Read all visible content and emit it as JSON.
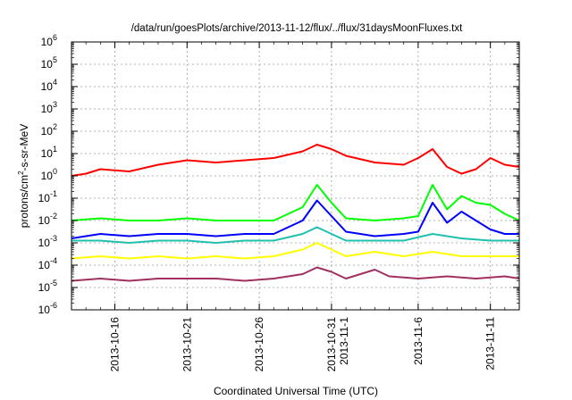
{
  "chart_data": {
    "type": "line",
    "title": "/data/run/goesPlots/archive/2013-11-12/flux/../flux/31daysMoonFluxes.txt",
    "xlabel": "Coordinated Universal Time (UTC)",
    "ylabel": "protons/cm2-s-sr-MeV",
    "ylabel_parts": {
      "pre": "protons/cm",
      "sup": "2",
      "post": "-s-sr-MeV"
    },
    "y_scale": "log",
    "ylim_log10": [
      -6,
      6
    ],
    "y_tick_labels": [
      {
        "base": "10",
        "exp": "-6"
      },
      {
        "base": "10",
        "exp": "-5"
      },
      {
        "base": "10",
        "exp": "-4"
      },
      {
        "base": "10",
        "exp": "-3"
      },
      {
        "base": "10",
        "exp": "-2"
      },
      {
        "base": "10",
        "exp": "-1"
      },
      {
        "base": "10",
        "exp": "0"
      },
      {
        "base": "10",
        "exp": "1"
      },
      {
        "base": "10",
        "exp": "2"
      },
      {
        "base": "10",
        "exp": "3"
      },
      {
        "base": "10",
        "exp": "4"
      },
      {
        "base": "10",
        "exp": "5"
      },
      {
        "base": "10",
        "exp": "6"
      }
    ],
    "xlim": [
      "2013-10-13",
      "2013-11-13"
    ],
    "x_ticks": [
      {
        "date": "2013-10-16",
        "labels": [
          "2013-10-16"
        ]
      },
      {
        "date": "2013-10-21",
        "labels": [
          "2013-10-21"
        ]
      },
      {
        "date": "2013-10-26",
        "labels": [
          "2013-10-26"
        ]
      },
      {
        "date": "2013-10-31",
        "labels": [
          "2013-10-31",
          "2013-11-1"
        ]
      },
      {
        "date": "2013-11-06",
        "labels": [
          "2013-11-6"
        ]
      },
      {
        "date": "2013-11-11",
        "labels": [
          "2013-11-11"
        ]
      }
    ],
    "grid": true,
    "series": [
      {
        "color": "#a03060",
        "points": [
          [
            "2013-10-13",
            -4.7
          ],
          [
            "2013-10-15",
            -4.6
          ],
          [
            "2013-10-17",
            -4.7
          ],
          [
            "2013-10-19",
            -4.6
          ],
          [
            "2013-10-21",
            -4.6
          ],
          [
            "2013-10-23",
            -4.6
          ],
          [
            "2013-10-25",
            -4.7
          ],
          [
            "2013-10-27",
            -4.6
          ],
          [
            "2013-10-29",
            -4.4
          ],
          [
            "2013-10-30",
            -4.1
          ],
          [
            "2013-10-31",
            -4.3
          ],
          [
            "2013-11-01",
            -4.6
          ],
          [
            "2013-11-03",
            -4.2
          ],
          [
            "2013-11-04",
            -4.5
          ],
          [
            "2013-11-06",
            -4.6
          ],
          [
            "2013-11-08",
            -4.5
          ],
          [
            "2013-11-10",
            -4.6
          ],
          [
            "2013-11-12",
            -4.5
          ],
          [
            "2013-11-13",
            -4.6
          ]
        ]
      },
      {
        "color": "#ffff00",
        "points": [
          [
            "2013-10-13",
            -3.7
          ],
          [
            "2013-10-15",
            -3.6
          ],
          [
            "2013-10-17",
            -3.7
          ],
          [
            "2013-10-19",
            -3.6
          ],
          [
            "2013-10-21",
            -3.7
          ],
          [
            "2013-10-23",
            -3.6
          ],
          [
            "2013-10-25",
            -3.7
          ],
          [
            "2013-10-27",
            -3.6
          ],
          [
            "2013-10-29",
            -3.3
          ],
          [
            "2013-10-30",
            -3.0
          ],
          [
            "2013-10-31",
            -3.3
          ],
          [
            "2013-11-01",
            -3.6
          ],
          [
            "2013-11-03",
            -3.4
          ],
          [
            "2013-11-05",
            -3.6
          ],
          [
            "2013-11-07",
            -3.4
          ],
          [
            "2013-11-09",
            -3.6
          ],
          [
            "2013-11-11",
            -3.6
          ],
          [
            "2013-11-13",
            -3.6
          ]
        ]
      },
      {
        "color": "#20c0b0",
        "points": [
          [
            "2013-10-13",
            -2.9
          ],
          [
            "2013-10-15",
            -2.9
          ],
          [
            "2013-10-17",
            -3.0
          ],
          [
            "2013-10-19",
            -2.9
          ],
          [
            "2013-10-21",
            -2.9
          ],
          [
            "2013-10-23",
            -3.0
          ],
          [
            "2013-10-25",
            -2.9
          ],
          [
            "2013-10-27",
            -2.9
          ],
          [
            "2013-10-29",
            -2.6
          ],
          [
            "2013-10-30",
            -2.3
          ],
          [
            "2013-10-31",
            -2.6
          ],
          [
            "2013-11-01",
            -2.9
          ],
          [
            "2013-11-03",
            -2.9
          ],
          [
            "2013-11-05",
            -2.9
          ],
          [
            "2013-11-07",
            -2.6
          ],
          [
            "2013-11-09",
            -2.8
          ],
          [
            "2013-11-11",
            -2.9
          ],
          [
            "2013-11-13",
            -2.9
          ]
        ]
      },
      {
        "color": "#0000ff",
        "points": [
          [
            "2013-10-13",
            -2.8
          ],
          [
            "2013-10-15",
            -2.6
          ],
          [
            "2013-10-17",
            -2.7
          ],
          [
            "2013-10-19",
            -2.6
          ],
          [
            "2013-10-21",
            -2.6
          ],
          [
            "2013-10-23",
            -2.7
          ],
          [
            "2013-10-25",
            -2.6
          ],
          [
            "2013-10-27",
            -2.6
          ],
          [
            "2013-10-29",
            -2.0
          ],
          [
            "2013-10-30",
            -1.1
          ],
          [
            "2013-10-31",
            -1.8
          ],
          [
            "2013-11-01",
            -2.5
          ],
          [
            "2013-11-03",
            -2.7
          ],
          [
            "2013-11-05",
            -2.6
          ],
          [
            "2013-11-06",
            -2.5
          ],
          [
            "2013-11-07",
            -1.2
          ],
          [
            "2013-11-08",
            -2.1
          ],
          [
            "2013-11-09",
            -1.6
          ],
          [
            "2013-11-10",
            -2.0
          ],
          [
            "2013-11-11",
            -2.4
          ],
          [
            "2013-11-12",
            -2.6
          ],
          [
            "2013-11-13",
            -2.6
          ]
        ]
      },
      {
        "color": "#00ff00",
        "points": [
          [
            "2013-10-13",
            -2.0
          ],
          [
            "2013-10-15",
            -1.9
          ],
          [
            "2013-10-17",
            -2.0
          ],
          [
            "2013-10-19",
            -2.0
          ],
          [
            "2013-10-21",
            -1.9
          ],
          [
            "2013-10-23",
            -2.0
          ],
          [
            "2013-10-25",
            -2.0
          ],
          [
            "2013-10-27",
            -2.0
          ],
          [
            "2013-10-29",
            -1.4
          ],
          [
            "2013-10-30",
            -0.4
          ],
          [
            "2013-10-31",
            -1.2
          ],
          [
            "2013-11-01",
            -1.9
          ],
          [
            "2013-11-03",
            -2.0
          ],
          [
            "2013-11-05",
            -1.9
          ],
          [
            "2013-11-06",
            -1.8
          ],
          [
            "2013-11-07",
            -0.4
          ],
          [
            "2013-11-08",
            -1.5
          ],
          [
            "2013-11-09",
            -0.9
          ],
          [
            "2013-11-10",
            -1.2
          ],
          [
            "2013-11-11",
            -1.3
          ],
          [
            "2013-11-12",
            -1.7
          ],
          [
            "2013-11-13",
            -2.0
          ]
        ]
      },
      {
        "color": "#ff0000",
        "points": [
          [
            "2013-10-13",
            0.0
          ],
          [
            "2013-10-14",
            0.1
          ],
          [
            "2013-10-15",
            0.3
          ],
          [
            "2013-10-17",
            0.2
          ],
          [
            "2013-10-19",
            0.5
          ],
          [
            "2013-10-21",
            0.7
          ],
          [
            "2013-10-23",
            0.6
          ],
          [
            "2013-10-25",
            0.7
          ],
          [
            "2013-10-27",
            0.8
          ],
          [
            "2013-10-29",
            1.1
          ],
          [
            "2013-10-30",
            1.4
          ],
          [
            "2013-10-31",
            1.2
          ],
          [
            "2013-11-01",
            0.9
          ],
          [
            "2013-11-03",
            0.6
          ],
          [
            "2013-11-05",
            0.5
          ],
          [
            "2013-11-06",
            0.8
          ],
          [
            "2013-11-07",
            1.2
          ],
          [
            "2013-11-08",
            0.4
          ],
          [
            "2013-11-09",
            0.1
          ],
          [
            "2013-11-10",
            0.3
          ],
          [
            "2013-11-11",
            0.8
          ],
          [
            "2013-11-12",
            0.5
          ],
          [
            "2013-11-13",
            0.4
          ]
        ]
      }
    ]
  }
}
